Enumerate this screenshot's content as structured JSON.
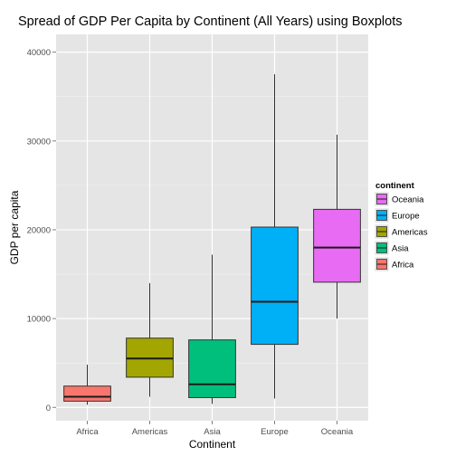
{
  "chart_data": {
    "type": "boxplot",
    "title": "Spread of GDP Per Capita by Continent (All Years) using Boxplots",
    "xlabel": "Continent",
    "ylabel": "GDP per capita",
    "ylim": [
      -1500,
      42000
    ],
    "yticks": [
      0,
      10000,
      20000,
      30000,
      40000
    ],
    "grid": true,
    "legend_position": "right",
    "legend_title": "continent",
    "categories": [
      "Africa",
      "Americas",
      "Asia",
      "Europe",
      "Oceania"
    ],
    "colors": {
      "Africa": "#F8766D",
      "Americas": "#A3A500",
      "Asia": "#00BF7D",
      "Europe": "#00B0F6",
      "Oceania": "#E76BF3"
    },
    "boxes": [
      {
        "name": "Africa",
        "min": 300,
        "q1": 700,
        "median": 1200,
        "q3": 2400,
        "max": 4800
      },
      {
        "name": "Americas",
        "min": 1200,
        "q1": 3400,
        "median": 5500,
        "q3": 7800,
        "max": 14000
      },
      {
        "name": "Asia",
        "min": 400,
        "q1": 1100,
        "median": 2600,
        "q3": 7600,
        "max": 17200
      },
      {
        "name": "Europe",
        "min": 1000,
        "q1": 7100,
        "median": 11900,
        "q3": 20300,
        "max": 37500
      },
      {
        "name": "Oceania",
        "min": 10000,
        "q1": 14100,
        "median": 18000,
        "q3": 22300,
        "max": 30700
      }
    ],
    "legend_order": [
      "Oceania",
      "Europe",
      "Americas",
      "Asia",
      "Africa"
    ]
  }
}
